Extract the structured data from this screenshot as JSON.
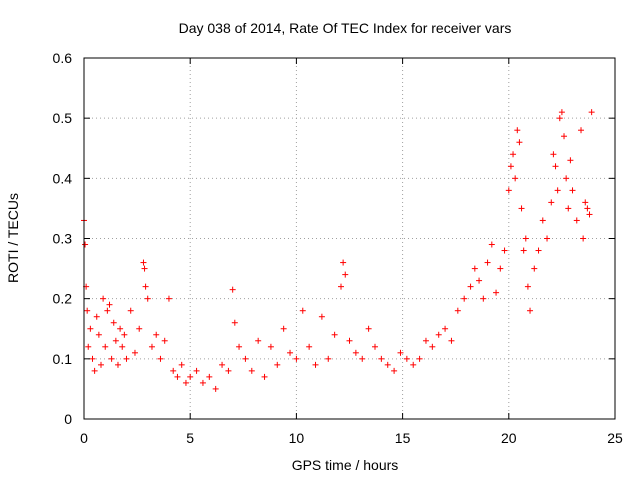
{
  "chart_data": {
    "type": "scatter",
    "title": "Day 038 of 2014, Rate Of TEC Index for receiver vars",
    "xlabel": "GPS time / hours",
    "ylabel": "ROTI / TECUs",
    "xlim": [
      0,
      25
    ],
    "ylim": [
      0,
      0.6
    ],
    "xticks": [
      0,
      5,
      10,
      15,
      20,
      25
    ],
    "yticks": [
      0,
      0.1,
      0.2,
      0.3,
      0.4,
      0.5,
      0.6
    ],
    "xtick_labels": [
      "0",
      "5",
      "10",
      "15",
      "20",
      "25"
    ],
    "ytick_labels": [
      "0",
      "0.1",
      "0.2",
      "0.3",
      "0.4",
      "0.5",
      "0.6"
    ],
    "grid": true,
    "marker": "+",
    "color": "#ff0000",
    "series": [
      {
        "name": "ROTI",
        "x": [
          0.0,
          0.05,
          0.1,
          0.15,
          0.2,
          0.3,
          0.4,
          0.5,
          0.6,
          0.7,
          0.8,
          0.9,
          1.0,
          1.1,
          1.2,
          1.3,
          1.4,
          1.5,
          1.6,
          1.7,
          1.8,
          1.9,
          2.0,
          2.2,
          2.4,
          2.6,
          2.8,
          2.85,
          2.9,
          3.0,
          3.2,
          3.4,
          3.6,
          3.8,
          4.0,
          4.2,
          4.4,
          4.6,
          4.8,
          5.0,
          5.3,
          5.6,
          5.9,
          6.2,
          6.5,
          6.8,
          7.0,
          7.1,
          7.3,
          7.6,
          7.9,
          8.2,
          8.5,
          8.8,
          9.1,
          9.4,
          9.7,
          10.0,
          10.3,
          10.6,
          10.9,
          11.2,
          11.5,
          11.8,
          12.1,
          12.2,
          12.3,
          12.5,
          12.8,
          13.1,
          13.4,
          13.7,
          14.0,
          14.3,
          14.6,
          14.9,
          15.2,
          15.5,
          15.8,
          16.1,
          16.4,
          16.7,
          17.0,
          17.3,
          17.6,
          17.9,
          18.2,
          18.4,
          18.6,
          18.8,
          19.0,
          19.2,
          19.4,
          19.6,
          19.8,
          20.0,
          20.1,
          20.2,
          20.3,
          20.4,
          20.5,
          20.6,
          20.7,
          20.8,
          20.9,
          21.0,
          21.2,
          21.4,
          21.6,
          21.8,
          22.0,
          22.1,
          22.2,
          22.3,
          22.4,
          22.5,
          22.6,
          22.7,
          22.8,
          22.9,
          23.0,
          23.2,
          23.4,
          23.5,
          23.6,
          23.7,
          23.8,
          23.9
        ],
        "y": [
          0.33,
          0.29,
          0.22,
          0.18,
          0.12,
          0.15,
          0.1,
          0.08,
          0.17,
          0.14,
          0.09,
          0.2,
          0.12,
          0.18,
          0.19,
          0.1,
          0.16,
          0.13,
          0.09,
          0.15,
          0.12,
          0.14,
          0.1,
          0.18,
          0.11,
          0.15,
          0.26,
          0.25,
          0.22,
          0.2,
          0.12,
          0.14,
          0.1,
          0.13,
          0.2,
          0.08,
          0.07,
          0.09,
          0.06,
          0.07,
          0.08,
          0.06,
          0.07,
          0.05,
          0.09,
          0.08,
          0.215,
          0.16,
          0.12,
          0.1,
          0.08,
          0.13,
          0.07,
          0.12,
          0.09,
          0.15,
          0.11,
          0.1,
          0.18,
          0.12,
          0.09,
          0.17,
          0.1,
          0.14,
          0.22,
          0.26,
          0.24,
          0.13,
          0.11,
          0.1,
          0.15,
          0.12,
          0.1,
          0.09,
          0.08,
          0.11,
          0.1,
          0.09,
          0.1,
          0.13,
          0.12,
          0.14,
          0.15,
          0.13,
          0.18,
          0.2,
          0.22,
          0.25,
          0.23,
          0.2,
          0.26,
          0.29,
          0.21,
          0.25,
          0.28,
          0.38,
          0.42,
          0.44,
          0.4,
          0.48,
          0.46,
          0.35,
          0.28,
          0.3,
          0.22,
          0.18,
          0.25,
          0.28,
          0.33,
          0.3,
          0.36,
          0.44,
          0.42,
          0.38,
          0.5,
          0.51,
          0.47,
          0.4,
          0.35,
          0.43,
          0.38,
          0.33,
          0.48,
          0.3,
          0.36,
          0.35,
          0.34,
          0.51
        ]
      }
    ]
  }
}
